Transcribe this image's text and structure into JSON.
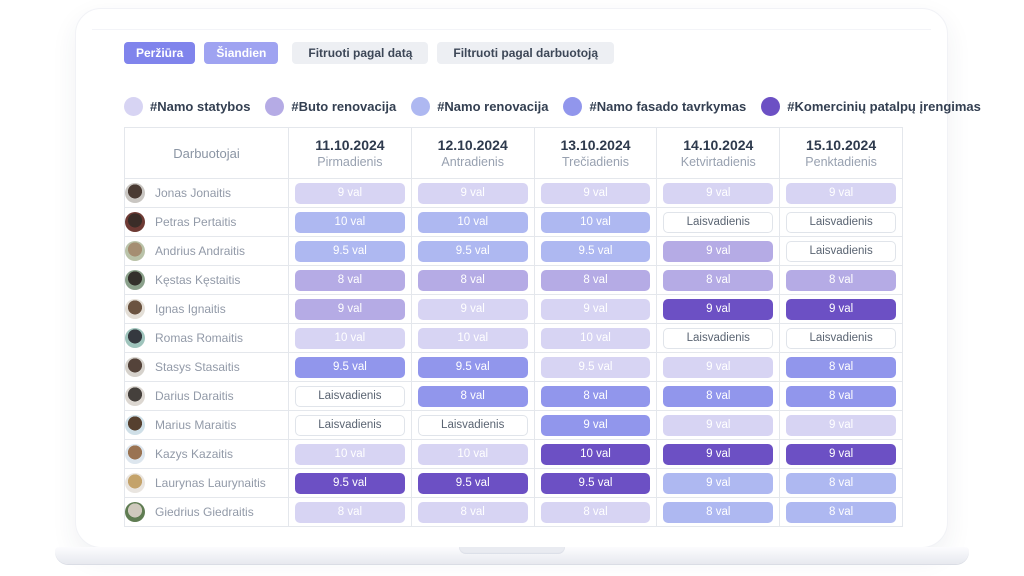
{
  "toolbar": {
    "view_label": "Peržiūra",
    "today_label": "Šiandien",
    "filter_date_label": "Fitruoti pagal datą",
    "filter_employee_label": "Filtruoti pagal darbuotoją"
  },
  "legend": [
    {
      "label": "#Namo statybos",
      "color": "#d7d4f3"
    },
    {
      "label": "#Buto renovacija",
      "color": "#b5abe5"
    },
    {
      "label": "#Namo renovacija",
      "color": "#aeb8f1"
    },
    {
      "label": "#Namo fasado tavrkymas",
      "color": "#9196ec"
    },
    {
      "label": "#Komercinių patalpų įrengimas",
      "color": "#6c50c4"
    }
  ],
  "table": {
    "employee_header": "Darbuotojai",
    "days": [
      {
        "date": "11.10.2024",
        "weekday": "Pirmadienis"
      },
      {
        "date": "12.10.2024",
        "weekday": "Antradienis"
      },
      {
        "date": "13.10.2024",
        "weekday": "Trečiadienis"
      },
      {
        "date": "14.10.2024",
        "weekday": "Ketvirtadienis"
      },
      {
        "date": "15.10.2024",
        "weekday": "Penktadienis"
      }
    ],
    "rows": [
      {
        "name": "Jonas Jonaitis",
        "avatar": [
          "#c9c6c2",
          "#4a3b33"
        ],
        "cells": [
          {
            "label": "9 val",
            "project": 0
          },
          {
            "label": "9 val",
            "project": 0
          },
          {
            "label": "9 val",
            "project": 0
          },
          {
            "label": "9 val",
            "project": 0
          },
          {
            "label": "9 val",
            "project": 0
          }
        ]
      },
      {
        "name": "Petras Pertaitis",
        "avatar": [
          "#6e3a34",
          "#3a2d28"
        ],
        "cells": [
          {
            "label": "10 val",
            "project": 2
          },
          {
            "label": "10 val",
            "project": 2
          },
          {
            "label": "10 val",
            "project": 2
          },
          {
            "label": "Laisvadienis",
            "off": true
          },
          {
            "label": "Laisvadienis",
            "off": true
          }
        ]
      },
      {
        "name": "Andrius Andraitis",
        "avatar": [
          "#b9c2a8",
          "#a58e72"
        ],
        "cells": [
          {
            "label": "9.5 val",
            "project": 2
          },
          {
            "label": "9.5 val",
            "project": 2
          },
          {
            "label": "9.5 val",
            "project": 2
          },
          {
            "label": "9 val",
            "project": 1
          },
          {
            "label": "Laisvadienis",
            "off": true
          }
        ]
      },
      {
        "name": "Kęstas Kęstaitis",
        "avatar": [
          "#8aa08a",
          "#33302b"
        ],
        "cells": [
          {
            "label": "8 val",
            "project": 1
          },
          {
            "label": "8 val",
            "project": 1
          },
          {
            "label": "8 val",
            "project": 1
          },
          {
            "label": "8 val",
            "project": 1
          },
          {
            "label": "8 val",
            "project": 1
          }
        ]
      },
      {
        "name": "Ignas Ignaitis",
        "avatar": [
          "#e3ded6",
          "#6b5340"
        ],
        "cells": [
          {
            "label": "9 val",
            "project": 1
          },
          {
            "label": "9 val",
            "project": 0
          },
          {
            "label": "9 val",
            "project": 0
          },
          {
            "label": "9 val",
            "project": 4
          },
          {
            "label": "9 val",
            "project": 4
          }
        ]
      },
      {
        "name": "Romas Romaitis",
        "avatar": [
          "#9fc4bc",
          "#35393f"
        ],
        "cells": [
          {
            "label": "10 val",
            "project": 0
          },
          {
            "label": "10 val",
            "project": 0
          },
          {
            "label": "10 val",
            "project": 0
          },
          {
            "label": "Laisvadienis",
            "off": true
          },
          {
            "label": "Laisvadienis",
            "off": true
          }
        ]
      },
      {
        "name": "Stasys Stasaitis",
        "avatar": [
          "#d6d2cc",
          "#54433a"
        ],
        "cells": [
          {
            "label": "9.5 val",
            "project": 3
          },
          {
            "label": "9.5 val",
            "project": 3
          },
          {
            "label": "9.5 val",
            "project": 0
          },
          {
            "label": "9 val",
            "project": 0
          },
          {
            "label": "8 val",
            "project": 3
          }
        ]
      },
      {
        "name": "Darius Daraitis",
        "avatar": [
          "#dcd7d1",
          "#45403c"
        ],
        "cells": [
          {
            "label": "Laisvadienis",
            "off": true
          },
          {
            "label": "8 val",
            "project": 3
          },
          {
            "label": "8 val",
            "project": 3
          },
          {
            "label": "8 val",
            "project": 3
          },
          {
            "label": "8 val",
            "project": 3
          }
        ]
      },
      {
        "name": "Marius Maraitis",
        "avatar": [
          "#cfdfe7",
          "#56402f"
        ],
        "cells": [
          {
            "label": "Laisvadienis",
            "off": true
          },
          {
            "label": "Laisvadienis",
            "off": true
          },
          {
            "label": "9 val",
            "project": 3
          },
          {
            "label": "9 val",
            "project": 0
          },
          {
            "label": "9 val",
            "project": 0
          }
        ]
      },
      {
        "name": "Kazys Kazaitis",
        "avatar": [
          "#dde6ee",
          "#9a7352"
        ],
        "cells": [
          {
            "label": "10 val",
            "project": 0
          },
          {
            "label": "10 val",
            "project": 0
          },
          {
            "label": "10 val",
            "project": 4
          },
          {
            "label": "9 val",
            "project": 4
          },
          {
            "label": "9 val",
            "project": 4
          }
        ]
      },
      {
        "name": "Laurynas Laurynaitis",
        "avatar": [
          "#e9e5e0",
          "#c4a36b"
        ],
        "cells": [
          {
            "label": "9.5 val",
            "project": 4
          },
          {
            "label": "9.5 val",
            "project": 4
          },
          {
            "label": "9.5 val",
            "project": 4
          },
          {
            "label": "9 val",
            "project": 2
          },
          {
            "label": "8 val",
            "project": 2
          }
        ]
      },
      {
        "name": "Giedrius Giedraitis",
        "avatar": [
          "#5f7c52",
          "#cfc9bd"
        ],
        "cells": [
          {
            "label": "8 val",
            "project": 0
          },
          {
            "label": "8 val",
            "project": 0
          },
          {
            "label": "8 val",
            "project": 0
          },
          {
            "label": "8 val",
            "project": 2
          },
          {
            "label": "8 val",
            "project": 2
          }
        ]
      }
    ]
  }
}
